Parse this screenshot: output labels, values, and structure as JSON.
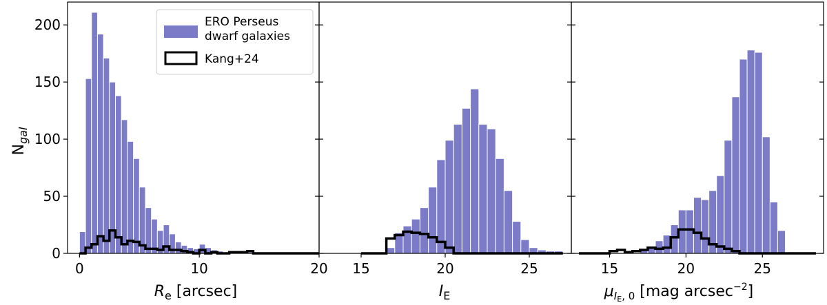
{
  "chart_data": [
    {
      "type": "bar",
      "subtype": "histogram",
      "ylabel": "N",
      "ylabel_sub": "gal",
      "xlabel_main": "R",
      "xlabel_sub": "e",
      "xlabel_rest": " [arcsec]",
      "xlim": [
        -1,
        20
      ],
      "ylim": [
        0,
        220
      ],
      "xticks": [
        "0",
        "10",
        "20"
      ],
      "xtick_values": [
        0,
        10,
        20
      ],
      "yticks": [
        "0",
        "50",
        "100",
        "150",
        "200"
      ],
      "ytick_values": [
        0,
        50,
        100,
        150,
        200
      ],
      "bin_edges": [
        0,
        0.5,
        1,
        1.5,
        2,
        2.5,
        3,
        3.5,
        4,
        4.5,
        5,
        5.5,
        6,
        6.5,
        7,
        7.5,
        8,
        8.5,
        9,
        9.5,
        10,
        10.5,
        11,
        11.5,
        12,
        12.5,
        13,
        13.5,
        14,
        14.5,
        15,
        15.5,
        16,
        16.5,
        17,
        17.5,
        18,
        18.5,
        19,
        19.5,
        20
      ],
      "series": [
        {
          "name": "ERO Perseus\ndwarf galaxies",
          "style": "filled",
          "color": "#7b7bc8",
          "values": [
            19,
            153,
            211,
            192,
            171,
            150,
            138,
            117,
            98,
            83,
            58,
            40,
            30,
            20,
            25,
            17,
            10,
            7,
            5,
            4,
            8,
            5,
            3,
            2,
            1,
            1,
            1,
            1,
            1,
            1,
            1,
            1,
            0,
            0,
            0,
            0,
            0,
            0,
            0,
            0
          ]
        },
        {
          "name": "Kang+24",
          "style": "step",
          "color": "#000000",
          "values": [
            0,
            5,
            8,
            15,
            11,
            20,
            14,
            8,
            11,
            10,
            7,
            4,
            4,
            3,
            6,
            3,
            3,
            2,
            1,
            0,
            3,
            0,
            1,
            0,
            0,
            1,
            1,
            1,
            2,
            0,
            0,
            0,
            0,
            0,
            0,
            0,
            0,
            0,
            0,
            0
          ]
        }
      ],
      "legend": {
        "location": "upper right",
        "entries": [
          "ERO Perseus",
          "dwarf galaxies",
          "Kang+24"
        ]
      }
    },
    {
      "type": "bar",
      "subtype": "histogram",
      "xlabel_main": "I",
      "xlabel_sub": "E",
      "xlabel_rest": "",
      "xlim": [
        12.5,
        27.5
      ],
      "ylim": [
        0,
        220
      ],
      "xticks": [
        "15",
        "20",
        "25"
      ],
      "xtick_values": [
        15,
        20,
        25
      ],
      "bin_edges": [
        16.5,
        17,
        17.5,
        18,
        18.5,
        19,
        19.5,
        20,
        20.5,
        21,
        21.5,
        22,
        22.5,
        23,
        23.5,
        24,
        24.5,
        25,
        25.5,
        26,
        26.5,
        27
      ],
      "series": [
        {
          "name": "ERO Perseus dwarf galaxies",
          "style": "filled",
          "color": "#7b7bc8",
          "values": [
            5,
            18,
            24,
            30,
            40,
            58,
            82,
            99,
            113,
            127,
            144,
            113,
            109,
            83,
            55,
            28,
            12,
            5,
            3,
            2,
            2
          ]
        },
        {
          "name": "Kang+24",
          "style": "step",
          "color": "#000000",
          "values": [
            13,
            16,
            19,
            18,
            17,
            14,
            10,
            5,
            0,
            0,
            0,
            0,
            0,
            0,
            0,
            0,
            0,
            0,
            0,
            0,
            0
          ]
        }
      ],
      "step_xrange": [
        15,
        20
      ]
    },
    {
      "type": "bar",
      "subtype": "histogram",
      "xlabel_main": "μ",
      "xlabel_sub": "I",
      "xlabel_subsub": "E",
      "xlabel_sub2": ", 0",
      "xlabel_rest": " [mag arcsec",
      "xlabel_sup": "−2",
      "xlabel_end": "]",
      "xlim": [
        12.5,
        29
      ],
      "ylim": [
        0,
        220
      ],
      "xticks": [
        "15",
        "20",
        "25"
      ],
      "xtick_values": [
        15,
        20,
        25
      ],
      "bin_edges": [
        17,
        17.5,
        18,
        18.5,
        19,
        19.5,
        20,
        20.5,
        21,
        21.5,
        22,
        22.5,
        23,
        23.5,
        24,
        24.5,
        25,
        25.5,
        26,
        26.5
      ],
      "series": [
        {
          "name": "ERO Perseus dwarf galaxies",
          "style": "filled",
          "color": "#7b7bc8",
          "values": [
            4,
            6,
            11,
            16,
            25,
            38,
            38,
            49,
            47,
            55,
            68,
            99,
            137,
            170,
            178,
            176,
            102,
            45,
            20
          ]
        },
        {
          "name": "Kang+24",
          "style": "step",
          "color": "#000000",
          "values": [
            3,
            5,
            4,
            5,
            14,
            21,
            21,
            18,
            13,
            8,
            6,
            4,
            2,
            0,
            0,
            0,
            0,
            0,
            0
          ]
        }
      ],
      "step_xrange": [
        13,
        22.5
      ],
      "step_extra_bins": [
        [
          15,
          15.5,
          2
        ],
        [
          15.5,
          16,
          3
        ],
        [
          16,
          16.5,
          1
        ],
        [
          16.5,
          17,
          2
        ]
      ]
    }
  ]
}
